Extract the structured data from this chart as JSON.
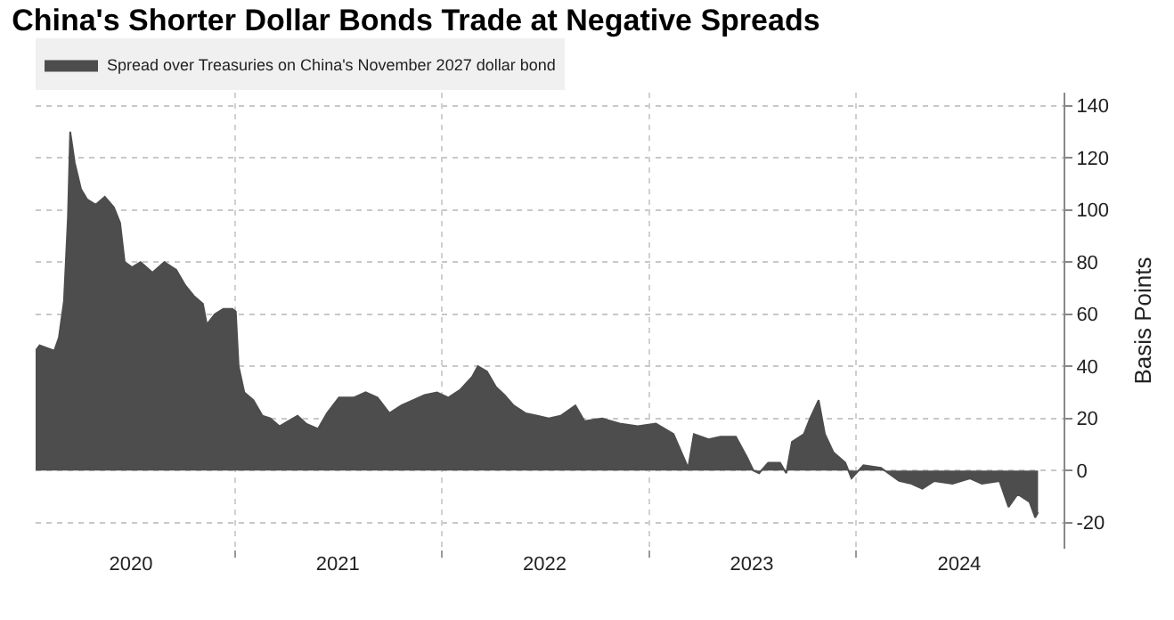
{
  "chart_data": {
    "type": "area",
    "title": "China's Shorter Dollar Bonds Trade at Negative Spreads",
    "ylabel": "Basis Points",
    "series": [
      {
        "name": "Spread over Treasuries on China's November 2027 dollar bond",
        "color": "#4d4d4d",
        "x": [
          "2020-01-15",
          "2020-01-22",
          "2020-02-17",
          "2020-02-25",
          "2020-03-05",
          "2020-03-12",
          "2020-03-16",
          "2020-03-24",
          "2020-04-04",
          "2020-04-15",
          "2020-04-30",
          "2020-05-16",
          "2020-06-01",
          "2020-06-12",
          "2020-06-20",
          "2020-07-03",
          "2020-07-18",
          "2020-08-08",
          "2020-08-29",
          "2020-09-19",
          "2020-10-05",
          "2020-10-20",
          "2020-11-05",
          "2020-11-12",
          "2020-11-26",
          "2020-12-11",
          "2020-12-27",
          "2021-01-02",
          "2021-01-07",
          "2021-01-17",
          "2021-02-02",
          "2021-02-18",
          "2021-03-04",
          "2021-03-20",
          "2021-04-05",
          "2021-04-21",
          "2021-05-06",
          "2021-05-27",
          "2021-06-12",
          "2021-07-03",
          "2021-07-29",
          "2021-08-19",
          "2021-09-09",
          "2021-09-30",
          "2021-10-21",
          "2021-11-11",
          "2021-12-01",
          "2021-12-23",
          "2022-01-12",
          "2022-02-02",
          "2022-02-23",
          "2022-03-05",
          "2022-03-21",
          "2022-04-06",
          "2022-04-21",
          "2022-05-07",
          "2022-05-28",
          "2022-06-18",
          "2022-07-08",
          "2022-07-29",
          "2022-08-24",
          "2022-09-09",
          "2022-10-10",
          "2022-11-10",
          "2022-12-12",
          "2023-01-13",
          "2023-02-13",
          "2023-03-11",
          "2023-03-21",
          "2023-04-16",
          "2023-05-07",
          "2023-06-03",
          "2023-06-23",
          "2023-07-04",
          "2023-07-14",
          "2023-07-30",
          "2023-08-20",
          "2023-08-31",
          "2023-09-10",
          "2023-10-01",
          "2023-10-12",
          "2023-10-27",
          "2023-11-07",
          "2023-11-22",
          "2023-12-13",
          "2023-12-24",
          "2024-01-14",
          "2024-02-14",
          "2024-03-17",
          "2024-04-07",
          "2024-04-27",
          "2024-05-18",
          "2024-06-19",
          "2024-07-20",
          "2024-08-10",
          "2024-09-10",
          "2024-09-26",
          "2024-10-12",
          "2024-11-02",
          "2024-11-12",
          "2024-11-17"
        ],
        "values": [
          46,
          48,
          46,
          51,
          65,
          97,
          130,
          118,
          108,
          104,
          102,
          105,
          101,
          95,
          80,
          78,
          80,
          76,
          80,
          77,
          71,
          67,
          64,
          56,
          60,
          62,
          62,
          61,
          40,
          30,
          27,
          21,
          20,
          17,
          19,
          21,
          18,
          16,
          22,
          28,
          28,
          30,
          28,
          22,
          25,
          27,
          29,
          30,
          28,
          31,
          36,
          40,
          38,
          32,
          29,
          25,
          22,
          21,
          20,
          21,
          25,
          19,
          20,
          18,
          17,
          18,
          14,
          1,
          14,
          12,
          13,
          13,
          5,
          0,
          -1,
          3,
          3,
          -1,
          11,
          14,
          20,
          27,
          14,
          7,
          3,
          -3,
          2,
          1,
          -4,
          -5,
          -7,
          -4,
          -5,
          -3,
          -5,
          -4,
          -14,
          -9,
          -12,
          -18,
          -16
        ]
      }
    ],
    "xlim": [
      "2020-01-15",
      "2025-01-01"
    ],
    "xticks": [
      {
        "value": "2020-07-01",
        "label": "2020"
      },
      {
        "value": "2021-01-01",
        "label": null
      },
      {
        "value": "2021-07-01",
        "label": "2021"
      },
      {
        "value": "2022-01-01",
        "label": null
      },
      {
        "value": "2022-07-01",
        "label": "2022"
      },
      {
        "value": "2023-01-01",
        "label": null
      },
      {
        "value": "2023-07-01",
        "label": "2023"
      },
      {
        "value": "2024-01-01",
        "label": null
      },
      {
        "value": "2024-07-01",
        "label": "2024"
      }
    ],
    "ylim": [
      -30,
      145
    ],
    "yticks": [
      -20,
      0,
      20,
      40,
      60,
      80,
      100,
      120,
      140
    ],
    "grid": true,
    "legend": "top left",
    "marker": "none"
  }
}
